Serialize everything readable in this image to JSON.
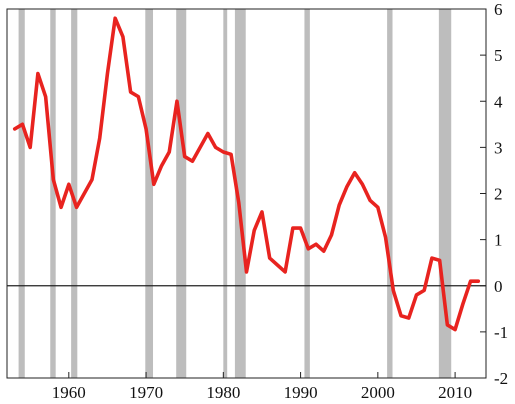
{
  "chart_data": {
    "type": "line",
    "title": "",
    "xlabel": "",
    "ylabel": "",
    "xlim": [
      1952,
      2014
    ],
    "ylim": [
      -2,
      6
    ],
    "x_ticks": [
      1960,
      1970,
      1980,
      1990,
      2000,
      2010
    ],
    "y_ticks": [
      -2,
      -1,
      0,
      1,
      2,
      3,
      4,
      5,
      6
    ],
    "y_axis_side": "right",
    "grid": false,
    "zero_line": true,
    "colors": {
      "line": "#e8231f",
      "shading": "#bdbdbd",
      "zero_line": "#222222",
      "frame": "#222222"
    },
    "shaded_periods": [
      [
        1953.5,
        1954.3
      ],
      [
        1957.6,
        1958.3
      ],
      [
        1960.3,
        1961.1
      ],
      [
        1969.9,
        1970.9
      ],
      [
        1973.9,
        1975.2
      ],
      [
        1980.0,
        1980.5
      ],
      [
        1981.5,
        1982.9
      ],
      [
        1990.5,
        1991.2
      ],
      [
        2001.2,
        2001.9
      ],
      [
        2007.9,
        2009.5
      ]
    ],
    "series": [
      {
        "x": [
          1953,
          1954,
          1955,
          1956,
          1957,
          1958,
          1959,
          1960,
          1961,
          1962,
          1963,
          1964,
          1965,
          1966,
          1967,
          1968,
          1969,
          1970,
          1971,
          1972,
          1973,
          1974,
          1975,
          1976,
          1977,
          1978,
          1979,
          1980,
          1981,
          1982,
          1983,
          1984,
          1985,
          1986,
          1987,
          1988,
          1989,
          1990,
          1991,
          1992,
          1993,
          1994,
          1995,
          1996,
          1997,
          1998,
          1999,
          2000,
          2001,
          2002,
          2003,
          2004,
          2005,
          2006,
          2007,
          2008,
          2009,
          2010,
          2011,
          2012,
          2013
        ],
        "values": [
          3.4,
          3.5,
          3.0,
          4.6,
          4.1,
          2.3,
          1.7,
          2.2,
          1.7,
          2.0,
          2.3,
          3.2,
          4.6,
          5.8,
          5.4,
          4.2,
          4.1,
          3.4,
          2.2,
          2.6,
          2.9,
          4.0,
          2.8,
          2.7,
          3.0,
          3.3,
          3.0,
          2.9,
          2.85,
          1.8,
          0.3,
          1.2,
          1.6,
          0.6,
          0.45,
          0.3,
          1.25,
          1.25,
          0.8,
          0.9,
          0.75,
          1.1,
          1.75,
          2.15,
          2.45,
          2.2,
          1.85,
          1.7,
          1.05,
          -0.1,
          -0.65,
          -0.7,
          -0.2,
          -0.1,
          0.6,
          0.55,
          -0.85,
          -0.95,
          -0.4,
          0.1,
          0.1
        ]
      }
    ]
  }
}
